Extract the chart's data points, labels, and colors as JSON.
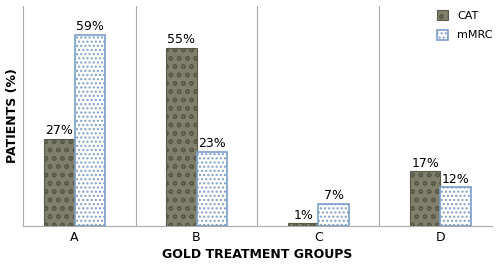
{
  "groups": [
    "A",
    "B",
    "C",
    "D"
  ],
  "cat_values": [
    27,
    55,
    1,
    17
  ],
  "mmrc_values": [
    59,
    23,
    7,
    12
  ],
  "cat_labels": [
    "27%",
    "55%",
    "1%",
    "17%"
  ],
  "mmrc_labels": [
    "59%",
    "23%",
    "7%",
    "12%"
  ],
  "xlabel": "GOLD TREATMENT GROUPS",
  "ylabel": "PATIENTS (%)",
  "ylim": [
    0,
    68
  ],
  "bar_width": 0.25,
  "cat_facecolor": "#7f7f6b",
  "cat_edgecolor": "#5a5a4a",
  "mmrc_facecolor": "#ffffff",
  "mmrc_edgecolor": "#7b9eca",
  "legend_cat": "CAT",
  "legend_mmrc": "mMRC",
  "label_fontsize": 8,
  "tick_fontsize": 9,
  "annot_fontsize": 9,
  "xlabel_fontsize": 9,
  "ylabel_fontsize": 9,
  "background_color": "#ffffff",
  "spine_color": "#aaaaaa",
  "vline_positions": [
    0.5,
    1.5,
    2.5
  ],
  "vline_color": "#aaaaaa",
  "figure_width": 5.0,
  "figure_height": 2.67,
  "dpi": 100
}
